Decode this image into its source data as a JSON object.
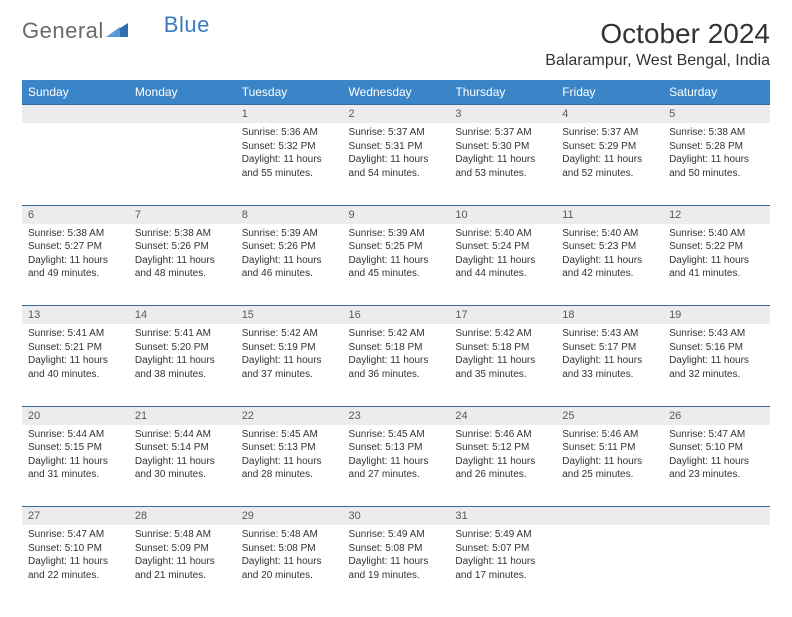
{
  "brand": {
    "part1": "General",
    "part2": "Blue"
  },
  "title": "October 2024",
  "subtitle": "Balarampur, West Bengal, India",
  "colors": {
    "header_bg": "#3a85c8",
    "header_text": "#ffffff",
    "daynum_bg": "#ececec",
    "daynum_text": "#5a5a5a",
    "rule": "#3a6a9a",
    "logo_gray": "#6a6a6a",
    "logo_blue": "#3a7bbf"
  },
  "fonts": {
    "day_header": 12,
    "daynum": 11,
    "body": 10,
    "title": 28,
    "subtitle": 16
  },
  "day_headers": [
    "Sunday",
    "Monday",
    "Tuesday",
    "Wednesday",
    "Thursday",
    "Friday",
    "Saturday"
  ],
  "weeks": [
    {
      "nums": [
        "",
        "",
        "1",
        "2",
        "3",
        "4",
        "5"
      ],
      "cells": [
        "",
        "",
        "Sunrise: 5:36 AM\nSunset: 5:32 PM\nDaylight: 11 hours and 55 minutes.",
        "Sunrise: 5:37 AM\nSunset: 5:31 PM\nDaylight: 11 hours and 54 minutes.",
        "Sunrise: 5:37 AM\nSunset: 5:30 PM\nDaylight: 11 hours and 53 minutes.",
        "Sunrise: 5:37 AM\nSunset: 5:29 PM\nDaylight: 11 hours and 52 minutes.",
        "Sunrise: 5:38 AM\nSunset: 5:28 PM\nDaylight: 11 hours and 50 minutes."
      ]
    },
    {
      "nums": [
        "6",
        "7",
        "8",
        "9",
        "10",
        "11",
        "12"
      ],
      "cells": [
        "Sunrise: 5:38 AM\nSunset: 5:27 PM\nDaylight: 11 hours and 49 minutes.",
        "Sunrise: 5:38 AM\nSunset: 5:26 PM\nDaylight: 11 hours and 48 minutes.",
        "Sunrise: 5:39 AM\nSunset: 5:26 PM\nDaylight: 11 hours and 46 minutes.",
        "Sunrise: 5:39 AM\nSunset: 5:25 PM\nDaylight: 11 hours and 45 minutes.",
        "Sunrise: 5:40 AM\nSunset: 5:24 PM\nDaylight: 11 hours and 44 minutes.",
        "Sunrise: 5:40 AM\nSunset: 5:23 PM\nDaylight: 11 hours and 42 minutes.",
        "Sunrise: 5:40 AM\nSunset: 5:22 PM\nDaylight: 11 hours and 41 minutes."
      ]
    },
    {
      "nums": [
        "13",
        "14",
        "15",
        "16",
        "17",
        "18",
        "19"
      ],
      "cells": [
        "Sunrise: 5:41 AM\nSunset: 5:21 PM\nDaylight: 11 hours and 40 minutes.",
        "Sunrise: 5:41 AM\nSunset: 5:20 PM\nDaylight: 11 hours and 38 minutes.",
        "Sunrise: 5:42 AM\nSunset: 5:19 PM\nDaylight: 11 hours and 37 minutes.",
        "Sunrise: 5:42 AM\nSunset: 5:18 PM\nDaylight: 11 hours and 36 minutes.",
        "Sunrise: 5:42 AM\nSunset: 5:18 PM\nDaylight: 11 hours and 35 minutes.",
        "Sunrise: 5:43 AM\nSunset: 5:17 PM\nDaylight: 11 hours and 33 minutes.",
        "Sunrise: 5:43 AM\nSunset: 5:16 PM\nDaylight: 11 hours and 32 minutes."
      ]
    },
    {
      "nums": [
        "20",
        "21",
        "22",
        "23",
        "24",
        "25",
        "26"
      ],
      "cells": [
        "Sunrise: 5:44 AM\nSunset: 5:15 PM\nDaylight: 11 hours and 31 minutes.",
        "Sunrise: 5:44 AM\nSunset: 5:14 PM\nDaylight: 11 hours and 30 minutes.",
        "Sunrise: 5:45 AM\nSunset: 5:13 PM\nDaylight: 11 hours and 28 minutes.",
        "Sunrise: 5:45 AM\nSunset: 5:13 PM\nDaylight: 11 hours and 27 minutes.",
        "Sunrise: 5:46 AM\nSunset: 5:12 PM\nDaylight: 11 hours and 26 minutes.",
        "Sunrise: 5:46 AM\nSunset: 5:11 PM\nDaylight: 11 hours and 25 minutes.",
        "Sunrise: 5:47 AM\nSunset: 5:10 PM\nDaylight: 11 hours and 23 minutes."
      ]
    },
    {
      "nums": [
        "27",
        "28",
        "29",
        "30",
        "31",
        "",
        ""
      ],
      "cells": [
        "Sunrise: 5:47 AM\nSunset: 5:10 PM\nDaylight: 11 hours and 22 minutes.",
        "Sunrise: 5:48 AM\nSunset: 5:09 PM\nDaylight: 11 hours and 21 minutes.",
        "Sunrise: 5:48 AM\nSunset: 5:08 PM\nDaylight: 11 hours and 20 minutes.",
        "Sunrise: 5:49 AM\nSunset: 5:08 PM\nDaylight: 11 hours and 19 minutes.",
        "Sunrise: 5:49 AM\nSunset: 5:07 PM\nDaylight: 11 hours and 17 minutes.",
        "",
        ""
      ]
    }
  ]
}
